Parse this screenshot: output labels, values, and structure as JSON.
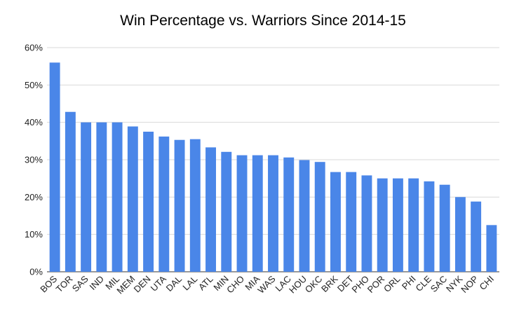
{
  "chart_data": {
    "type": "bar",
    "title": "Win Percentage vs. Warriors Since 2014-15",
    "xlabel": "",
    "ylabel": "",
    "ylim": [
      0,
      60
    ],
    "y_ticks": [
      0,
      10,
      20,
      30,
      40,
      50,
      60
    ],
    "y_tick_labels": [
      "0%",
      "10%",
      "20%",
      "30%",
      "40%",
      "50%",
      "60%"
    ],
    "grid": true,
    "legend": "none",
    "bar_color": "#4a86e8",
    "categories": [
      "BOS",
      "TOR",
      "SAS",
      "IND",
      "MIL",
      "MEM",
      "DEN",
      "UTA",
      "DAL",
      "LAL",
      "ATL",
      "MIN",
      "CHO",
      "MIA",
      "WAS",
      "LAC",
      "HOU",
      "OKC",
      "BRK",
      "DET",
      "PHO",
      "POR",
      "ORL",
      "PHI",
      "CLE",
      "SAC",
      "NYK",
      "NOP",
      "CHI"
    ],
    "values": [
      56.0,
      42.8,
      40.0,
      40.0,
      40.0,
      38.9,
      37.5,
      36.2,
      35.3,
      35.5,
      33.3,
      32.1,
      31.2,
      31.2,
      31.2,
      30.6,
      29.9,
      29.4,
      26.7,
      26.7,
      25.8,
      25.0,
      25.0,
      25.0,
      24.2,
      23.3,
      20.0,
      18.8,
      12.5
    ]
  }
}
